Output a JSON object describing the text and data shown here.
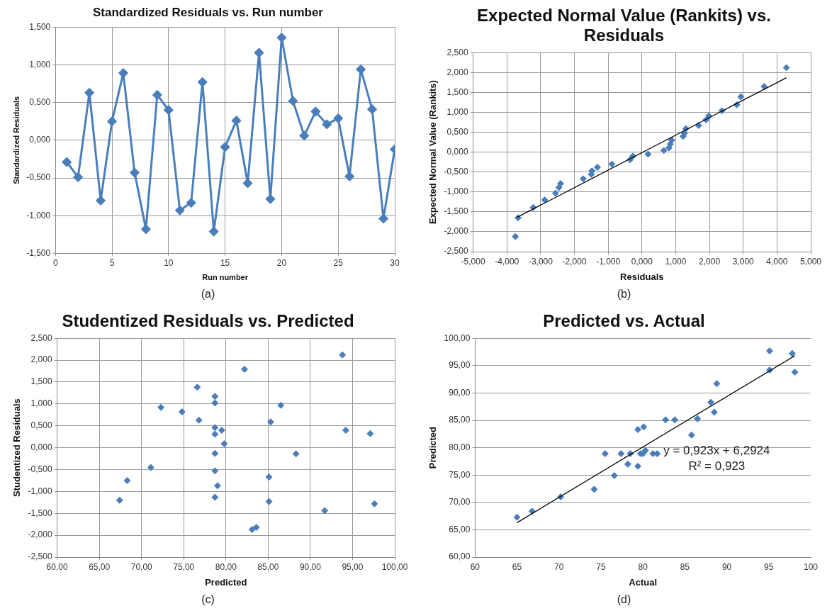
{
  "chart_data": [
    {
      "type": "line",
      "title": "Standardized Residuals vs. Run number",
      "xlabel": "Run number",
      "ylabel": "Standardized Residuals",
      "marker": "diamond",
      "line_style": "solid",
      "grid": true,
      "xlim": [
        0,
        30
      ],
      "xticks": [
        0,
        5,
        10,
        15,
        20,
        25,
        30
      ],
      "ylim": [
        -1.5,
        1.5
      ],
      "yticks": [
        {
          "value": -1.5,
          "label": "-1,500"
        },
        {
          "value": -1,
          "label": "-1,000"
        },
        {
          "value": -0.5,
          "label": "-0,500"
        },
        {
          "value": 0,
          "label": "0,000"
        },
        {
          "value": 0.5,
          "label": "0,500"
        },
        {
          "value": 1,
          "label": "1,000"
        },
        {
          "value": 1.5,
          "label": "1,500"
        }
      ],
      "x": [
        1,
        2,
        3,
        4,
        5,
        6,
        7,
        8,
        9,
        10,
        11,
        12,
        13,
        14,
        15,
        16,
        17,
        18,
        19,
        20,
        21,
        22,
        23,
        24,
        25,
        26,
        27,
        28,
        29,
        30
      ],
      "series": [
        {
          "color": "#4a7ebb",
          "values": [
            -0.29,
            -0.49,
            0.63,
            -0.8,
            0.25,
            0.89,
            -0.43,
            -1.18,
            0.6,
            0.4,
            -0.93,
            -0.83,
            0.77,
            -1.21,
            -0.09,
            0.26,
            -0.57,
            1.16,
            -0.78,
            1.36,
            0.52,
            0.06,
            0.38,
            0.21,
            0.29,
            -0.48,
            0.94,
            0.41,
            -1.04,
            -0.12
          ]
        }
      ],
      "annotations": [
        "(a)"
      ]
    },
    {
      "type": "scatter",
      "title": "Expected Normal Value (Rankits) vs. Residuals",
      "xlabel": "Residuals",
      "ylabel": "Expected Normal Value (Rankits)",
      "marker": "diamond",
      "grid": true,
      "xlim": [
        -5,
        5
      ],
      "xticks": [
        {
          "value": -5,
          "label": "-5,000"
        },
        {
          "value": -4,
          "label": "-4,000"
        },
        {
          "value": -3,
          "label": "-3,000"
        },
        {
          "value": -2,
          "label": "-2,000"
        },
        {
          "value": -1,
          "label": "-1,000"
        },
        {
          "value": 0,
          "label": "0,000"
        },
        {
          "value": 1,
          "label": "1,000"
        },
        {
          "value": 2,
          "label": "2,000"
        },
        {
          "value": 3,
          "label": "3,000"
        },
        {
          "value": 4,
          "label": "4,000"
        },
        {
          "value": 5,
          "label": "5,000"
        }
      ],
      "ylim": [
        -2.5,
        2.5
      ],
      "yticks": [
        {
          "value": -2.5,
          "label": "-2,500"
        },
        {
          "value": -2,
          "label": "-2,000"
        },
        {
          "value": -1.5,
          "label": "-1,500"
        },
        {
          "value": -1,
          "label": "-1,000"
        },
        {
          "value": -0.5,
          "label": "-0,500"
        },
        {
          "value": 0,
          "label": "0,000"
        },
        {
          "value": 0.5,
          "label": "0,500"
        },
        {
          "value": 1,
          "label": "1,000"
        },
        {
          "value": 1.5,
          "label": "1,500"
        },
        {
          "value": 2,
          "label": "2,000"
        },
        {
          "value": 2.5,
          "label": "2,500"
        }
      ],
      "series": [
        {
          "color": "#4a7ebb",
          "x": [
            4.28,
            3.62,
            2.93,
            2.81,
            2.37,
            1.98,
            1.9,
            1.68,
            1.3,
            1.26,
            1.22,
            0.88,
            0.84,
            0.8,
            0.65,
            0.18,
            -0.27,
            -0.35,
            -0.89,
            -1.32,
            -1.48,
            -1.5,
            -1.74,
            -2.41,
            -2.46,
            -2.56,
            -2.88,
            -3.22,
            -3.67,
            -3.75
          ],
          "values": [
            2.12,
            1.65,
            1.39,
            1.19,
            1.04,
            0.91,
            0.81,
            0.67,
            0.59,
            0.48,
            0.4,
            0.3,
            0.2,
            0.11,
            0.04,
            -0.05,
            -0.1,
            -0.19,
            -0.3,
            -0.38,
            -0.47,
            -0.56,
            -0.67,
            -0.79,
            -0.89,
            -1.03,
            -1.2,
            -1.39,
            -1.65,
            -2.12
          ]
        },
        {
          "type": "line",
          "color": "#000000",
          "marker": "none",
          "x": [
            -3.7,
            4.28
          ],
          "values": [
            -1.64,
            1.87
          ]
        }
      ],
      "annotations": [
        "(b)"
      ]
    },
    {
      "type": "scatter",
      "title": "Studentized Residuals vs. Predicted",
      "xlabel": "Predicted",
      "ylabel": "Studentized Residuals",
      "marker": "diamond",
      "grid": true,
      "xlim": [
        60,
        100
      ],
      "xticks": [
        {
          "value": 60,
          "label": "60,00"
        },
        {
          "value": 65,
          "label": "65,00"
        },
        {
          "value": 70,
          "label": "70,00"
        },
        {
          "value": 75,
          "label": "75,00"
        },
        {
          "value": 80,
          "label": "80,00"
        },
        {
          "value": 85,
          "label": "85,00"
        },
        {
          "value": 90,
          "label": "90,00"
        },
        {
          "value": 95,
          "label": "95,00"
        },
        {
          "value": 100,
          "label": "100,00"
        }
      ],
      "ylim": [
        -2.5,
        2.5
      ],
      "yticks": [
        {
          "value": -2.5,
          "label": "-2,500"
        },
        {
          "value": -2,
          "label": "-2,000"
        },
        {
          "value": -1.5,
          "label": "-1,500"
        },
        {
          "value": -1,
          "label": "-1,000"
        },
        {
          "value": -0.5,
          "label": "-0,500"
        },
        {
          "value": 0,
          "label": "0,000"
        },
        {
          "value": 0.5,
          "label": "0,500"
        },
        {
          "value": 1,
          "label": "1,000"
        },
        {
          "value": 1.5,
          "label": "1,500"
        },
        {
          "value": 2,
          "label": "2,000"
        },
        {
          "value": 2.5,
          "label": "2,500"
        }
      ],
      "series": [
        {
          "color": "#4a7ebb",
          "x": [
            93.8,
            82.2,
            76.6,
            78.7,
            78.7,
            72.3,
            86.5,
            74.8,
            76.8,
            85.3,
            78.7,
            79.5,
            94.2,
            97.1,
            78.7,
            79.8,
            78.7,
            88.3,
            71.1,
            78.7,
            85.1,
            68.3,
            79.0,
            78.7,
            67.4,
            85.1,
            97.6,
            91.7,
            83.1,
            83.6
          ],
          "values": [
            2.12,
            1.79,
            1.38,
            1.17,
            1.02,
            0.92,
            0.97,
            0.82,
            0.63,
            0.59,
            0.46,
            0.4,
            0.4,
            0.32,
            0.31,
            0.09,
            -0.13,
            -0.14,
            -0.45,
            -0.53,
            -0.67,
            -0.75,
            -0.87,
            -1.13,
            -1.2,
            -1.23,
            -1.28,
            -1.44,
            -1.87,
            -1.82
          ]
        }
      ],
      "annotations": [
        "(c)"
      ]
    },
    {
      "type": "scatter",
      "title": "Predicted vs. Actual",
      "xlabel": "Actual",
      "ylabel": "Predicted",
      "marker": "diamond",
      "grid": "y",
      "xlim": [
        60,
        100
      ],
      "xticks": [
        60,
        65,
        70,
        75,
        80,
        85,
        90,
        95,
        100
      ],
      "ylim": [
        60,
        100
      ],
      "yticks": [
        {
          "value": 60,
          "label": "60,00"
        },
        {
          "value": 65,
          "label": "65,00"
        },
        {
          "value": 70,
          "label": "70,00"
        },
        {
          "value": 75,
          "label": "75,00"
        },
        {
          "value": 80,
          "label": "80,00"
        },
        {
          "value": 85,
          "label": "85,00"
        },
        {
          "value": 90,
          "label": "90,00"
        },
        {
          "value": 95,
          "label": "95,00"
        },
        {
          "value": 100,
          "label": "100,00"
        }
      ],
      "series": [
        {
          "color": "#4a7ebb",
          "x": [
            95.1,
            97.8,
            95.1,
            98.1,
            88.8,
            88.1,
            88.5,
            82.7,
            83.8,
            86.5,
            80.1,
            79.4,
            85.8,
            80.3,
            75.5,
            77.4,
            78.5,
            79.7,
            80.0,
            81.2,
            81.7,
            78.2,
            79.4,
            76.6,
            74.2,
            70.2,
            66.8,
            65.0
          ],
          "values": [
            97.7,
            97.2,
            94.2,
            93.8,
            91.7,
            88.3,
            86.5,
            85.1,
            85.1,
            85.3,
            83.8,
            83.3,
            82.3,
            79.5,
            78.9,
            78.9,
            78.9,
            78.9,
            78.9,
            78.9,
            78.9,
            77.0,
            76.6,
            74.9,
            72.4,
            71.0,
            68.4,
            67.3
          ]
        },
        {
          "type": "line",
          "color": "#000000",
          "marker": "none",
          "x": [
            65,
            98.1
          ],
          "values": [
            66.3,
            96.8
          ]
        }
      ],
      "annotations": [
        "y = 0,923x + 6,2924",
        "R² = 0,923",
        "(d)"
      ]
    }
  ]
}
